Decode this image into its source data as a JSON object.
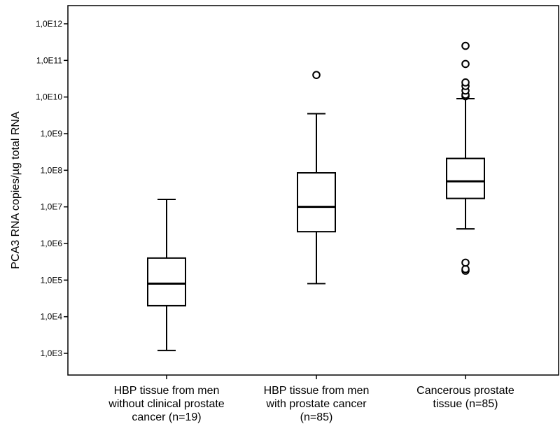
{
  "chart_data": {
    "type": "box",
    "ylabel": "PCA3 RNA copies/µg total RNA",
    "y_scale": "log10",
    "ylim": [
      500,
      10000000000000
    ],
    "yticks": [
      {
        "value": 1000,
        "label": "1,0E3"
      },
      {
        "value": 10000,
        "label": "1,0E4"
      },
      {
        "value": 100000,
        "label": "1,0E5"
      },
      {
        "value": 1000000,
        "label": "1,0E6"
      },
      {
        "value": 10000000,
        "label": "1,0E7"
      },
      {
        "value": 100000000,
        "label": "1,0E8"
      },
      {
        "value": 1000000000,
        "label": "1,0E9"
      },
      {
        "value": 10000000000,
        "label": "1,0E10"
      },
      {
        "value": 100000000000,
        "label": "1,0E11"
      },
      {
        "value": 1000000000000,
        "label": "1,0E12"
      }
    ],
    "groups": [
      {
        "label_lines": [
          "HBP tissue from men",
          "without clinical prostate",
          "cancer (n=19)"
        ],
        "whisker_low": 1200,
        "q1": 20000,
        "median": 80000,
        "q3": 400000,
        "whisker_high": 16000000,
        "outliers": []
      },
      {
        "label_lines": [
          "HBP tissue from men",
          "with prostate cancer",
          "(n=85)"
        ],
        "whisker_low": 80000,
        "q1": 2100000,
        "median": 10000000,
        "q3": 85000000,
        "whisker_high": 3500000000,
        "outliers": [
          40000000000
        ]
      },
      {
        "label_lines": [
          "Cancerous prostate",
          "tissue (n=85)"
        ],
        "whisker_low": 2500000,
        "q1": 17000000,
        "median": 50000000,
        "q3": 210000000,
        "whisker_high": 9000000000,
        "outliers": [
          180000,
          200000,
          300000,
          10500000000,
          11500000000,
          15000000000,
          20000000000,
          25000000000,
          80000000000,
          250000000000
        ]
      }
    ]
  }
}
